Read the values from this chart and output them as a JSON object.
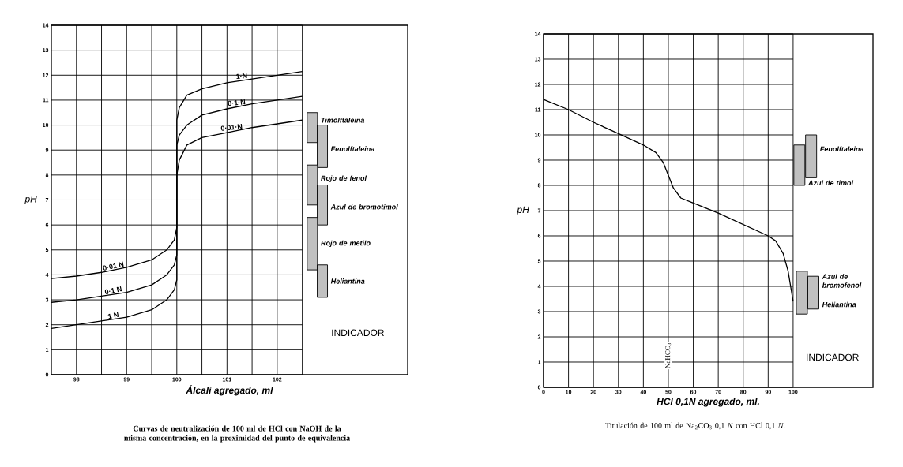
{
  "chart_data": [
    {
      "type": "line",
      "title": "Curvas de neutralización de 100 ml de HCl con NaOH de la misma concentración, en la proximidad del punto de equivalencia",
      "xlabel": "Álcali agregado, ml",
      "ylabel": "pH",
      "xlim": [
        97.5,
        104.6
      ],
      "ylim": [
        0,
        14
      ],
      "xticks": [
        98,
        {
          "value": 98.5,
          "label": null
        },
        99,
        {
          "value": 99.5,
          "label": null
        },
        100,
        {
          "value": 100.5,
          "label": null
        },
        101,
        {
          "value": 101.5,
          "label": null
        },
        102,
        {
          "value": 102.5,
          "label": null
        }
      ],
      "yticks": [
        0,
        1,
        2,
        3,
        4,
        5,
        6,
        7,
        8,
        9,
        10,
        11,
        12,
        13,
        14
      ],
      "grid": true,
      "series": [
        {
          "name": "0·01 N",
          "color": "#000000",
          "x": [
            97.5,
            98,
            98.5,
            99,
            99.5,
            99.8,
            99.95,
            100,
            100,
            100.05,
            100.2,
            100.5,
            101,
            101.5,
            102,
            102.5
          ],
          "values": [
            3.85,
            3.95,
            4.1,
            4.3,
            4.6,
            5.0,
            5.4,
            5.9,
            8.0,
            8.6,
            9.2,
            9.5,
            9.7,
            9.9,
            10.05,
            10.2
          ]
        },
        {
          "name": "0·1 N",
          "color": "#000000",
          "x": [
            97.5,
            98,
            98.5,
            99,
            99.5,
            99.8,
            99.95,
            100,
            100,
            100.05,
            100.2,
            100.5,
            101,
            101.5,
            102,
            102.5
          ],
          "values": [
            2.9,
            3.0,
            3.15,
            3.3,
            3.6,
            4.0,
            4.4,
            4.8,
            9.2,
            9.6,
            10.0,
            10.4,
            10.65,
            10.85,
            11.0,
            11.15
          ]
        },
        {
          "name": "1 N",
          "color": "#000000",
          "x": [
            97.5,
            98,
            98.5,
            99,
            99.5,
            99.8,
            99.95,
            100,
            100,
            100.05,
            100.2,
            100.5,
            101,
            101.5,
            102,
            102.5
          ],
          "values": [
            1.85,
            2.0,
            2.15,
            2.3,
            2.6,
            3.0,
            3.4,
            3.8,
            10.2,
            10.7,
            11.2,
            11.45,
            11.7,
            11.85,
            12.0,
            12.15
          ]
        },
        {
          "type": "bar",
          "name": "Timolftaleina",
          "color": "#c0c0c0",
          "x": [
            102.7
          ],
          "base": [
            9.3
          ],
          "values": [
            1.2
          ]
        },
        {
          "type": "bar",
          "name": "Fenolftaleina",
          "color": "#c0c0c0",
          "x": [
            102.9
          ],
          "base": [
            8.3
          ],
          "values": [
            1.7
          ]
        },
        {
          "type": "bar",
          "name": "Rojo de fenol",
          "color": "#c0c0c0",
          "x": [
            102.7
          ],
          "base": [
            6.8
          ],
          "values": [
            1.6
          ]
        },
        {
          "type": "bar",
          "name": "Azul de bromotimol",
          "color": "#c0c0c0",
          "x": [
            102.9
          ],
          "base": [
            6.0
          ],
          "values": [
            1.6
          ]
        },
        {
          "type": "bar",
          "name": "Rojo de metilo",
          "color": "#c0c0c0",
          "x": [
            102.7
          ],
          "base": [
            4.2
          ],
          "values": [
            2.1
          ]
        },
        {
          "type": "bar",
          "name": "Heliantina",
          "color": "#c0c0c0",
          "x": [
            102.9
          ],
          "base": [
            3.1
          ],
          "values": [
            1.3
          ]
        }
      ],
      "annotations": [
        "INDICADOR",
        {
          "text": "1·N",
          "x": 101.3,
          "y": 11.8
        },
        {
          "text": "0·1·N",
          "x": 101.2,
          "y": 10.73
        },
        {
          "text": "0·01·N",
          "x": 101.1,
          "y": 9.74
        }
      ]
    },
    {
      "type": "line",
      "title": "Titulación de 100 ml de Na$_{2}$CO$_{3}$ 0,1 *N* con HCl 0,1 *N*.",
      "xlabel": "HCl 0,1N agregado, ml.",
      "ylabel": "pH",
      "xlim": [
        0,
        132
      ],
      "ylim": [
        0,
        14
      ],
      "xticks": [
        0,
        10,
        20,
        30,
        40,
        50,
        60,
        70,
        80,
        90,
        100
      ],
      "yticks": [
        0,
        1,
        2,
        3,
        4,
        5,
        6,
        7,
        8,
        9,
        10,
        11,
        12,
        13,
        14
      ],
      "grid": true,
      "series": [
        {
          "color": "#000000",
          "x": [
            0,
            10,
            20,
            30,
            40,
            45,
            48,
            50,
            52,
            55,
            60,
            70,
            80,
            90,
            93,
            96,
            98,
            99,
            100
          ],
          "values": [
            11.4,
            11.0,
            10.5,
            10.05,
            9.6,
            9.3,
            8.9,
            8.4,
            7.9,
            7.5,
            7.3,
            6.9,
            6.45,
            6.0,
            5.8,
            5.3,
            4.6,
            4.0,
            3.4
          ]
        },
        {
          "type": "bar",
          "name": "Azul de timol",
          "color": "#c0c0c0",
          "x": [
            102.5
          ],
          "base": [
            8.0
          ],
          "values": [
            1.6
          ]
        },
        {
          "type": "bar",
          "name": "Fenolftaleina",
          "color": "#c0c0c0",
          "x": [
            107.2
          ],
          "base": [
            8.3
          ],
          "values": [
            1.7
          ]
        },
        {
          "type": "bar",
          "name": "Azul de bromofenol",
          "color": "#c0c0c0",
          "x": [
            103.5
          ],
          "base": [
            2.9
          ],
          "values": [
            1.7
          ]
        },
        {
          "type": "bar",
          "name": "Heliantina",
          "color": "#c0c0c0",
          "x": [
            108.1
          ],
          "base": [
            3.1
          ],
          "values": [
            1.3
          ]
        }
      ],
      "annotations": [
        "INDICADOR",
        "NaHCO$_{3}$"
      ]
    }
  ]
}
